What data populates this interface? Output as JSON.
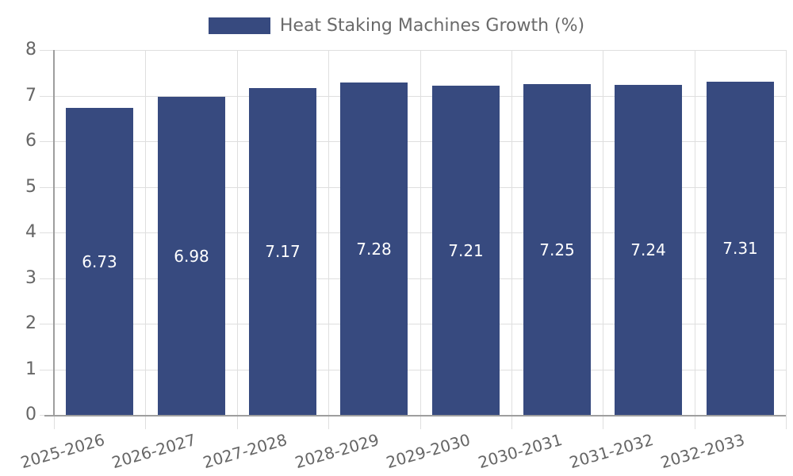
{
  "chart_data": {
    "type": "bar",
    "title": "Heat Staking Machines Growth (%)",
    "legend": {
      "label": "Heat Staking Machines Growth (%)",
      "position": "top"
    },
    "categories": [
      "2025-2026",
      "2026-2027",
      "2027-2028",
      "2028-2029",
      "2029-2030",
      "2030-2031",
      "2031-2032",
      "2032-2033"
    ],
    "values": [
      6.73,
      6.98,
      7.17,
      7.28,
      7.21,
      7.25,
      7.24,
      7.31
    ],
    "value_labels": [
      "6.73",
      "6.98",
      "7.17",
      "7.28",
      "7.21",
      "7.25",
      "7.24",
      "7.31"
    ],
    "xlabel": "",
    "ylabel": "",
    "ylim": [
      0,
      8
    ],
    "yticks": [
      0,
      1,
      2,
      3,
      4,
      5,
      6,
      7,
      8
    ],
    "grid": true,
    "colors": {
      "bar": "#374A7F",
      "value_label": "#FFFFFF",
      "grid_line": "#DFDFDF",
      "axis_line": "#9E9E9E",
      "tick_label": "#666666",
      "legend_text": "#6A6A6A",
      "background": "#FFFFFF"
    }
  }
}
